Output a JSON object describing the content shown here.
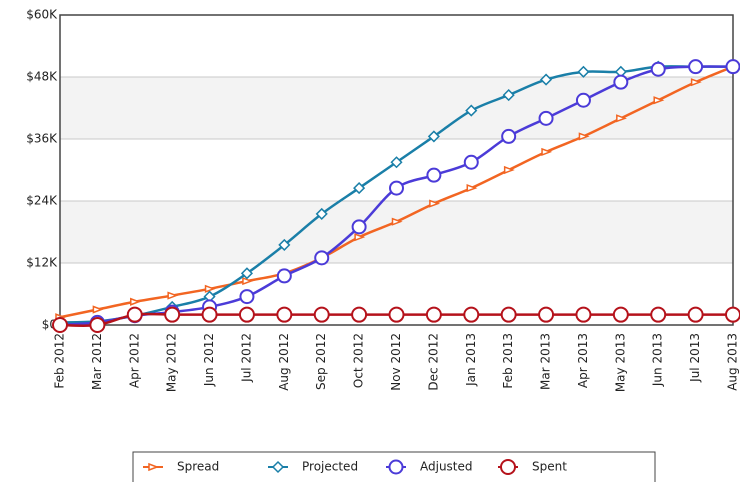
{
  "chart_data": {
    "type": "line",
    "categories": [
      "Feb 2012",
      "Mar 2012",
      "Apr 2012",
      "May 2012",
      "Jun 2012",
      "Jul 2012",
      "Aug 2012",
      "Sep 2012",
      "Oct 2012",
      "Nov 2012",
      "Dec 2012",
      "Jan 2013",
      "Feb 2013",
      "Mar 2013",
      "Apr 2013",
      "May 2013",
      "Jun 2013",
      "Jul 2013",
      "Aug 2013"
    ],
    "series": [
      {
        "name": "Spread",
        "color": "#f26522",
        "marker": "triangle",
        "values": [
          1500,
          3000,
          4500,
          5700,
          7000,
          8500,
          10000,
          13000,
          17000,
          20000,
          23500,
          26500,
          30000,
          33500,
          36500,
          40000,
          43500,
          47000,
          50000
        ]
      },
      {
        "name": "Projected",
        "color": "#1a7fa8",
        "marker": "diamond",
        "values": [
          500,
          700,
          1800,
          3500,
          5500,
          10000,
          15500,
          21500,
          26500,
          31500,
          36500,
          41500,
          44500,
          47500,
          49000,
          49000,
          50000,
          50000,
          50000
        ]
      },
      {
        "name": "Adjusted",
        "color": "#4b3bd8",
        "marker": "circle",
        "values": [
          0,
          500,
          1800,
          2500,
          3500,
          5500,
          9500,
          13000,
          19000,
          26500,
          29000,
          31500,
          36500,
          40000,
          43500,
          47000,
          49500,
          50000,
          50000
        ]
      },
      {
        "name": "Spent",
        "color": "#b5121b",
        "marker": "circle",
        "values": [
          0,
          0,
          2000,
          2000,
          2000,
          2000,
          2000,
          2000,
          2000,
          2000,
          2000,
          2000,
          2000,
          2000,
          2000,
          2000,
          2000,
          2000,
          2000
        ]
      }
    ],
    "ylim": [
      0,
      60000
    ],
    "yticks": [
      {
        "value": 0,
        "label": "$0"
      },
      {
        "value": 12000,
        "label": "$12K"
      },
      {
        "value": 24000,
        "label": "$24K"
      },
      {
        "value": 36000,
        "label": "$36K"
      },
      {
        "value": 48000,
        "label": "$48K"
      },
      {
        "value": 60000,
        "label": "$60K"
      }
    ],
    "grid": true,
    "legend": "bottom"
  }
}
